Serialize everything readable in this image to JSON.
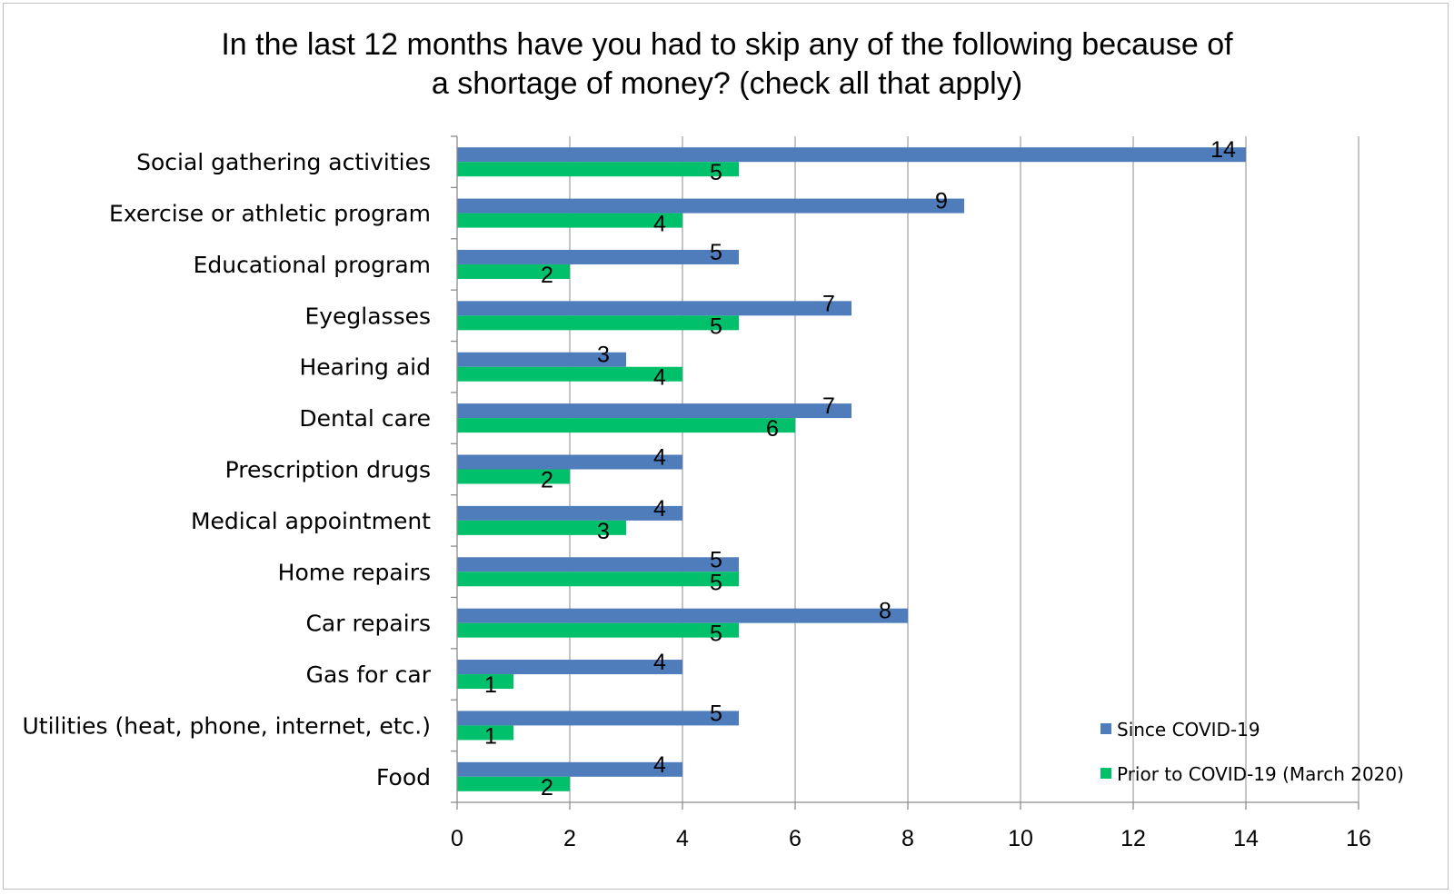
{
  "chart_data": {
    "type": "bar",
    "orientation": "horizontal",
    "title_lines": [
      "In the last 12 months have you had to skip any of the following because of",
      "a shortage of money? (check all that apply)"
    ],
    "categories": [
      "Social gathering activities",
      "Exercise or athletic program",
      "Educational program",
      "Eyeglasses",
      "Hearing aid",
      "Dental care",
      "Prescription drugs",
      "Medical appointment",
      "Home repairs",
      "Car repairs",
      "Gas for car",
      "Utilities (heat, phone, internet, etc.)",
      "Food"
    ],
    "series": [
      {
        "name": "Since COVID-19",
        "color": "#4f7cba",
        "values": [
          14,
          9,
          5,
          7,
          3,
          7,
          4,
          4,
          5,
          8,
          4,
          5,
          4
        ]
      },
      {
        "name": "Prior to COVID-19 (March 2020)",
        "color": "#00c06b",
        "values": [
          5,
          4,
          2,
          5,
          4,
          6,
          2,
          3,
          5,
          5,
          1,
          1,
          2
        ]
      }
    ],
    "xlim": [
      0,
      16
    ],
    "xticks": [
      "0",
      "2",
      "4",
      "6",
      "8",
      "10",
      "12",
      "14",
      "16"
    ],
    "grid": "vertical",
    "legend_position": "bottom-right",
    "data_labels": true
  }
}
